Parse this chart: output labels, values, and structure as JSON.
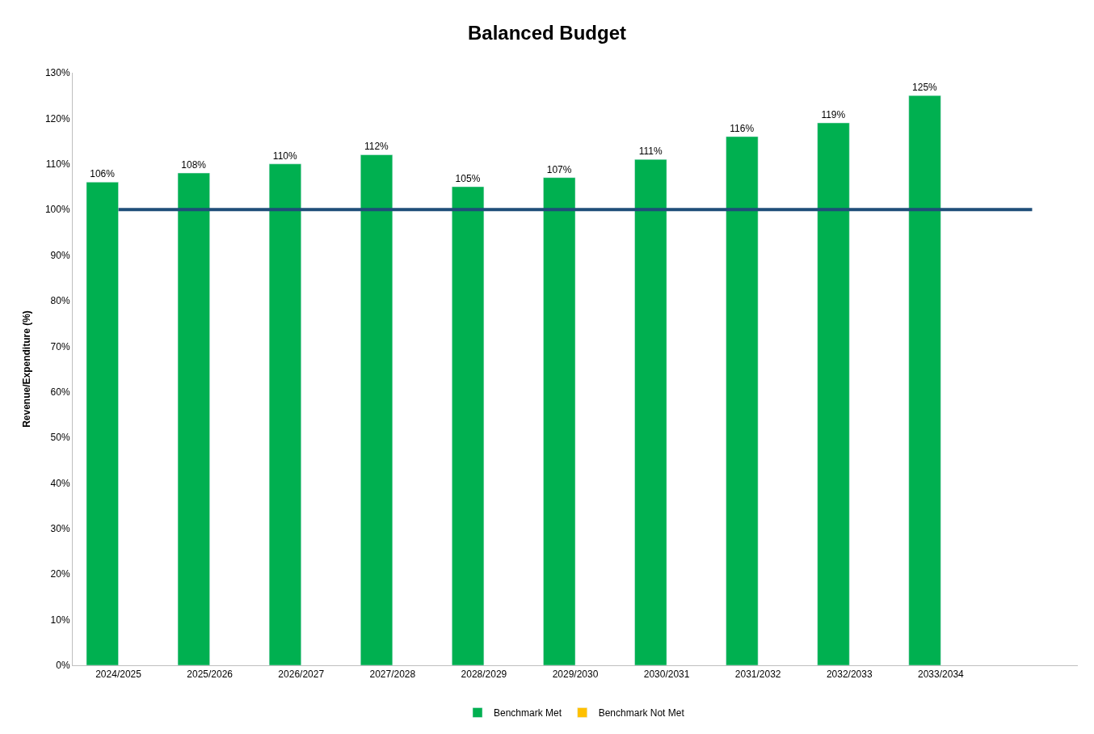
{
  "chart_data": {
    "type": "bar",
    "title": "Balanced Budget",
    "ylabel": "Revenue/Expenditure (%)",
    "categories": [
      "2024/2025",
      "2025/2026",
      "2026/2027",
      "2027/2028",
      "2028/2029",
      "2029/2030",
      "2030/2031",
      "2031/2032",
      "2032/2033",
      "2033/2034",
      null
    ],
    "series": [
      {
        "name": "Benchmark Met",
        "color": "#00b050",
        "values": [
          106,
          108,
          110,
          112,
          105,
          107,
          111,
          116,
          119,
          125,
          null
        ],
        "value_labels": [
          "106%",
          "108%",
          "110%",
          "112%",
          "105%",
          "107%",
          "111%",
          "116%",
          "119%",
          "125%",
          null
        ]
      },
      {
        "name": "Benchmark Not Met",
        "color": "#ffc000",
        "values": [
          null,
          null,
          null,
          null,
          null,
          null,
          null,
          null,
          null,
          null,
          null
        ]
      }
    ],
    "ylim": [
      0,
      130
    ],
    "yticks": [
      {
        "value": 0,
        "label": "0%"
      },
      {
        "value": 10,
        "label": "10%"
      },
      {
        "value": 20,
        "label": "20%"
      },
      {
        "value": 30,
        "label": "30%"
      },
      {
        "value": 40,
        "label": "40%"
      },
      {
        "value": 50,
        "label": "50%"
      },
      {
        "value": 60,
        "label": "60%"
      },
      {
        "value": 70,
        "label": "70%"
      },
      {
        "value": 80,
        "label": "80%"
      },
      {
        "value": 90,
        "label": "90%"
      },
      {
        "value": 100,
        "label": "100%"
      },
      {
        "value": 110,
        "label": "110%"
      },
      {
        "value": 120,
        "label": "120%"
      },
      {
        "value": 130,
        "label": "130%"
      }
    ],
    "ref_lines": [
      {
        "axis": "y",
        "value": 100,
        "color": "#1f4e79"
      }
    ],
    "legend": "bottom"
  }
}
